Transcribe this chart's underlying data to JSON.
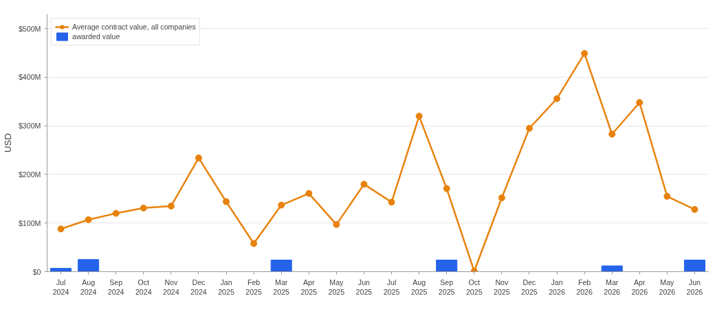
{
  "chart_data": {
    "type": "bar",
    "ylabel": "USD",
    "categories": [
      "Jul\n2024",
      "Aug\n2024",
      "Sep\n2024",
      "Oct\n2024",
      "Nov\n2024",
      "Dec\n2024",
      "Jan\n2025",
      "Feb\n2025",
      "Mar\n2025",
      "Apr\n2025",
      "May\n2025",
      "Jun\n2025",
      "Jul\n2025",
      "Aug\n2025",
      "Sep\n2025",
      "Oct\n2025",
      "Nov\n2025",
      "Dec\n2025",
      "Jan\n2026",
      "Feb\n2026",
      "Mar\n2026",
      "Apr\n2026",
      "May\n2026",
      "Jun\n2026"
    ],
    "series": [
      {
        "name": "Average contract value, all companies",
        "type": "line",
        "color": "#e8820c",
        "values": [
          88,
          107,
          120,
          131,
          135,
          234,
          144,
          58,
          137,
          161,
          97,
          180,
          143,
          320,
          171,
          1,
          152,
          295,
          356,
          449,
          283,
          348,
          155,
          128
        ]
      },
      {
        "name": "awarded value",
        "color": "#2563eb",
        "values": [
          7,
          25,
          null,
          null,
          null,
          null,
          null,
          null,
          24,
          null,
          null,
          null,
          null,
          null,
          24,
          null,
          null,
          null,
          null,
          null,
          12,
          null,
          null,
          24
        ]
      }
    ],
    "ylim": [
      0,
      530
    ],
    "yticks": [
      {
        "value": 0,
        "label": "$0"
      },
      {
        "value": 100,
        "label": "$100M"
      },
      {
        "value": 200,
        "label": "$200M"
      },
      {
        "value": 300,
        "label": "$300M"
      },
      {
        "value": 400,
        "label": "$400M"
      },
      {
        "value": 500,
        "label": "$500M"
      }
    ],
    "grid": "y",
    "legend": "top left",
    "marker": "circle",
    "line_style": "solid"
  }
}
